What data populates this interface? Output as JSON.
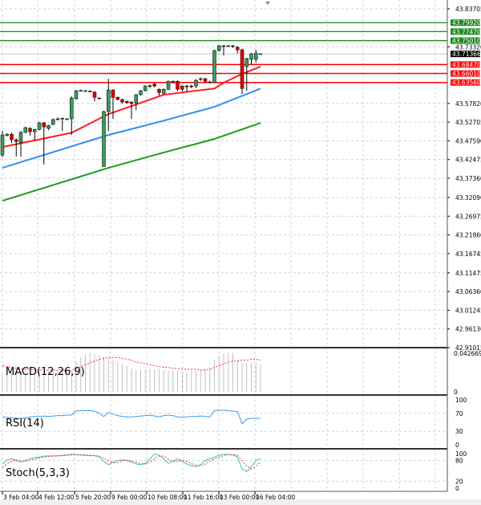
{
  "chart_data": {
    "type": "candlestick",
    "symbol_panel": "main",
    "price_axis": {
      "range": [
        42.91015,
        43.83705
      ],
      "tick_labels": [
        "43.83705",
        "43.73320",
        "43.57820",
        "43.52705",
        "43.47590",
        "43.42475",
        "43.37360",
        "43.32090",
        "43.26975",
        "43.21860",
        "43.16745",
        "43.11475",
        "43.06360",
        "43.01245",
        "42.96130",
        "42.91015"
      ]
    },
    "time_axis": {
      "tick_labels": [
        "3 Feb 04:00",
        "4 Feb 12:00",
        "5 Feb 20:00",
        "9 Feb 00:00",
        "10 Feb 08:00",
        "11 Feb 16:00",
        "13 Feb 00:00",
        "16 Feb 04:00"
      ]
    },
    "grid": true,
    "colors": {
      "bull": "#3c9a5f",
      "bear": "#e00000",
      "ma_fast": "#ff2020",
      "ma_mid": "#2e8ff0",
      "ma_slow": "#1f9a1f",
      "resistance": "#1a8a1a",
      "support": "#ff0000",
      "current": "#000000"
    },
    "horizontal_levels": {
      "resistance": [
        "43.79920",
        "43.77470",
        "43.75010"
      ],
      "support": [
        "43.68470",
        "43.66010",
        "43.63560"
      ],
      "current_price": "43.71366"
    },
    "candles_ohlc": [
      [
        43.437,
        43.503,
        43.432,
        43.492
      ],
      [
        43.491,
        43.497,
        43.488,
        43.494
      ],
      [
        43.494,
        43.498,
        43.47,
        43.479
      ],
      [
        43.479,
        43.482,
        43.433,
        43.474
      ],
      [
        43.472,
        43.503,
        43.433,
        43.499
      ],
      [
        43.499,
        43.515,
        43.497,
        43.512
      ],
      [
        43.51,
        43.513,
        43.49,
        43.501
      ],
      [
        43.501,
        43.509,
        43.477,
        43.507
      ],
      [
        43.507,
        43.528,
        43.505,
        43.525
      ],
      [
        43.525,
        43.528,
        43.411,
        43.514
      ],
      [
        43.51,
        43.52,
        43.505,
        43.518
      ],
      [
        43.521,
        43.537,
        43.519,
        43.534
      ],
      [
        43.534,
        43.54,
        43.532,
        43.536
      ],
      [
        43.537,
        43.539,
        43.503,
        43.538
      ],
      [
        43.536,
        43.538,
        43.534,
        43.536
      ],
      [
        43.536,
        43.598,
        43.492,
        43.593
      ],
      [
        43.591,
        43.615,
        43.589,
        43.613
      ],
      [
        43.613,
        43.616,
        43.611,
        43.614
      ],
      [
        43.613,
        43.615,
        43.611,
        43.613
      ],
      [
        43.612,
        43.614,
        43.61,
        43.611
      ],
      [
        43.609,
        43.612,
        43.584,
        43.595
      ],
      [
        43.593,
        43.594,
        43.59,
        43.591
      ],
      [
        43.406,
        43.558,
        43.404,
        43.556
      ],
      [
        43.556,
        43.646,
        43.503,
        43.615
      ],
      [
        43.615,
        43.617,
        43.536,
        43.595
      ],
      [
        43.595,
        43.597,
        43.587,
        43.589
      ],
      [
        43.589,
        43.591,
        43.578,
        43.582
      ],
      [
        43.584,
        43.586,
        43.578,
        43.58
      ],
      [
        43.582,
        43.584,
        43.536,
        43.578
      ],
      [
        43.58,
        43.604,
        43.56,
        43.602
      ],
      [
        43.602,
        43.615,
        43.6,
        43.613
      ],
      [
        43.613,
        43.628,
        43.611,
        43.626
      ],
      [
        43.626,
        43.63,
        43.62,
        43.627
      ],
      [
        43.631,
        43.634,
        43.622,
        43.626
      ],
      [
        43.617,
        43.619,
        43.6,
        43.608
      ],
      [
        43.606,
        43.619,
        43.604,
        43.617
      ],
      [
        43.617,
        43.641,
        43.615,
        43.639
      ],
      [
        43.639,
        43.641,
        43.633,
        43.639
      ],
      [
        43.639,
        43.641,
        43.612,
        43.617
      ],
      [
        43.626,
        43.628,
        43.612,
        43.617
      ],
      [
        43.626,
        43.629,
        43.61,
        43.626
      ],
      [
        43.626,
        43.63,
        43.62,
        43.624
      ],
      [
        43.626,
        43.645,
        43.62,
        43.641
      ],
      [
        43.646,
        43.649,
        43.64,
        43.646
      ],
      [
        43.646,
        43.648,
        43.635,
        43.639
      ],
      [
        43.637,
        43.64,
        43.633,
        43.635
      ],
      [
        43.635,
        43.725,
        43.633,
        43.723
      ],
      [
        43.723,
        43.738,
        43.72,
        43.736
      ],
      [
        43.736,
        43.738,
        43.71,
        43.736
      ],
      [
        43.736,
        43.738,
        43.733,
        43.736
      ],
      [
        43.736,
        43.738,
        43.73,
        43.734
      ],
      [
        43.732,
        43.735,
        43.715,
        43.725
      ],
      [
        43.725,
        43.728,
        43.604,
        43.619
      ],
      [
        43.679,
        43.703,
        43.613,
        43.701
      ],
      [
        43.699,
        43.716,
        43.685,
        43.714
      ],
      [
        43.699,
        43.725,
        43.69,
        43.716
      ],
      [
        43.714,
        43.715,
        43.713,
        43.714
      ]
    ],
    "moving_averages": [
      {
        "color": "#ff2020",
        "points": [
          [
            0,
            43.459
          ],
          [
            15,
            43.498
          ],
          [
            23,
            43.549
          ],
          [
            35,
            43.602
          ],
          [
            46,
            43.619
          ],
          [
            48,
            43.635
          ],
          [
            52,
            43.659
          ],
          [
            56,
            43.679
          ]
        ]
      },
      {
        "color": "#2e8ff0",
        "points": [
          [
            0,
            43.402
          ],
          [
            23,
            43.492
          ],
          [
            35,
            43.531
          ],
          [
            46,
            43.569
          ],
          [
            56,
            43.619
          ]
        ]
      },
      {
        "color": "#1f9a1f",
        "points": [
          [
            0,
            43.312
          ],
          [
            23,
            43.402
          ],
          [
            35,
            43.444
          ],
          [
            46,
            43.481
          ],
          [
            56,
            43.525
          ]
        ]
      }
    ],
    "macd": {
      "label": "MACD(12,26,9)",
      "axis_labels": [
        "0.042669",
        "0"
      ],
      "range": [
        0,
        0.042669
      ],
      "histogram": [
        0.02,
        0.021,
        0.021,
        0.022,
        0.022,
        0.022,
        0.022,
        0.022,
        0.023,
        0.023,
        0.023,
        0.023,
        0.023,
        0.024,
        0.024,
        0.024,
        0.034,
        0.038,
        0.041,
        0.043,
        0.042,
        0.041,
        0.039,
        0.037,
        0.035,
        0.033,
        0.031,
        0.029,
        0.026,
        0.024,
        0.024,
        0.025,
        0.025,
        0.025,
        0.025,
        0.024,
        0.023,
        0.023,
        0.023,
        0.022,
        0.022,
        0.023,
        0.023,
        0.025,
        0.026,
        0.027,
        0.036,
        0.04,
        0.042,
        0.043,
        0.043,
        0.035,
        0.032,
        0.032,
        0.032,
        0.032,
        0.03
      ],
      "signal": [
        0.029,
        0.028,
        0.027,
        0.026,
        0.025,
        0.025,
        0.025,
        0.024,
        0.024,
        0.024,
        0.024,
        0.024,
        0.024,
        0.024,
        0.024,
        0.024,
        0.026,
        0.028,
        0.03,
        0.032,
        0.034,
        0.036,
        0.037,
        0.038,
        0.038,
        0.038,
        0.037,
        0.036,
        0.035,
        0.033,
        0.032,
        0.031,
        0.03,
        0.029,
        0.028,
        0.027,
        0.027,
        0.026,
        0.026,
        0.025,
        0.025,
        0.025,
        0.025,
        0.024,
        0.024,
        0.025,
        0.027,
        0.029,
        0.031,
        0.033,
        0.034,
        0.034,
        0.035,
        0.035,
        0.036,
        0.036,
        0.035
      ]
    },
    "rsi": {
      "label": "RSI(14)",
      "axis_labels": [
        "100",
        "70",
        "30",
        "0"
      ],
      "values": [
        62,
        61,
        60,
        59,
        59,
        60,
        62,
        63,
        63,
        64,
        63,
        64,
        65,
        65,
        66,
        66,
        75,
        76,
        76,
        76,
        75,
        70,
        63,
        72,
        68,
        65,
        63,
        62,
        62,
        63,
        64,
        65,
        66,
        64,
        62,
        65,
        66,
        65,
        62,
        61,
        62,
        63,
        63,
        64,
        63,
        62,
        76,
        77,
        77,
        76,
        75,
        74,
        47,
        57,
        59,
        59,
        59
      ]
    },
    "stoch": {
      "label": "Stoch(5,3,3)",
      "axis_labels": [
        "100",
        "80",
        "20",
        "0"
      ],
      "main": [
        70,
        82,
        85,
        80,
        75,
        80,
        85,
        88,
        90,
        93,
        93,
        93,
        94,
        95,
        96,
        98,
        97,
        96,
        95,
        94,
        94,
        90,
        78,
        68,
        75,
        80,
        82,
        80,
        75,
        70,
        68,
        72,
        85,
        99,
        95,
        85,
        72,
        78,
        85,
        78,
        70,
        65,
        62,
        68,
        80,
        85,
        90,
        95,
        98,
        98,
        96,
        90,
        55,
        48,
        62,
        80,
        85
      ],
      "signal": [
        60,
        70,
        78,
        82,
        80,
        78,
        80,
        84,
        87,
        90,
        92,
        93,
        93,
        94,
        95,
        96,
        97,
        97,
        96,
        95,
        94,
        93,
        87,
        79,
        74,
        74,
        79,
        81,
        79,
        75,
        71,
        70,
        75,
        85,
        93,
        93,
        84,
        78,
        78,
        80,
        78,
        71,
        66,
        65,
        70,
        78,
        85,
        90,
        94,
        97,
        97,
        95,
        80,
        64,
        55,
        63,
        76
      ]
    }
  }
}
